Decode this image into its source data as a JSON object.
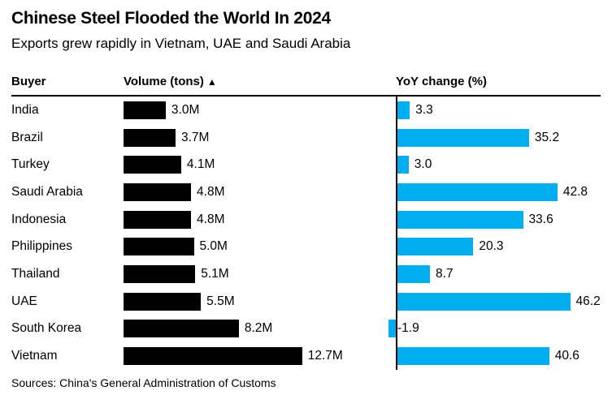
{
  "header": {
    "title": "Chinese Steel Flooded the World In 2024",
    "subtitle": "Exports grew rapidly in Vietnam, UAE and Saudi Arabia"
  },
  "table": {
    "col_buyer": "Buyer",
    "col_volume": "Volume (tons)",
    "sort_indicator": "▲",
    "col_yoy": "YoY change (%)"
  },
  "footer": {
    "source": "Sources: China's General Administration of Customs"
  },
  "colors": {
    "volume_bar": "#000000",
    "yoy_bar": "#00AEEF",
    "rule": "#000000"
  },
  "chart_data": {
    "type": "bar",
    "orientation": "horizontal",
    "title": "Chinese Steel Flooded the World In 2024",
    "subtitle": "Exports grew rapidly in Vietnam, UAE and Saudi Arabia",
    "columns": [
      "Buyer",
      "Volume (tons) ▲",
      "YoY change (%)"
    ],
    "sort": "volume ascending",
    "legend_position": "none",
    "grid": false,
    "categories": [
      "India",
      "Brazil",
      "Turkey",
      "Saudi Arabia",
      "Indonesia",
      "Philippines",
      "Thailand",
      "UAE",
      "South Korea",
      "Vietnam"
    ],
    "series": [
      {
        "name": "Volume (tons)",
        "unit": "millions of tons",
        "color": "#000000",
        "values": [
          3.0,
          3.7,
          4.1,
          4.8,
          4.8,
          5.0,
          5.1,
          5.5,
          8.2,
          12.7
        ]
      },
      {
        "name": "YoY change (%)",
        "unit": "percent",
        "color": "#00AEEF",
        "values": [
          3.3,
          35.2,
          3.0,
          42.8,
          33.6,
          20.3,
          8.7,
          46.2,
          -1.9,
          40.6
        ]
      }
    ],
    "rows": [
      {
        "buyer": "India",
        "volume_m": 3.0,
        "volume_label": "3.0M",
        "yoy": 3.3,
        "yoy_label": "3.3"
      },
      {
        "buyer": "Brazil",
        "volume_m": 3.7,
        "volume_label": "3.7M",
        "yoy": 35.2,
        "yoy_label": "35.2"
      },
      {
        "buyer": "Turkey",
        "volume_m": 4.1,
        "volume_label": "4.1M",
        "yoy": 3.0,
        "yoy_label": "3.0"
      },
      {
        "buyer": "Saudi Arabia",
        "volume_m": 4.8,
        "volume_label": "4.8M",
        "yoy": 42.8,
        "yoy_label": "42.8"
      },
      {
        "buyer": "Indonesia",
        "volume_m": 4.8,
        "volume_label": "4.8M",
        "yoy": 33.6,
        "yoy_label": "33.6"
      },
      {
        "buyer": "Philippines",
        "volume_m": 5.0,
        "volume_label": "5.0M",
        "yoy": 20.3,
        "yoy_label": "20.3"
      },
      {
        "buyer": "Thailand",
        "volume_m": 5.1,
        "volume_label": "5.1M",
        "yoy": 8.7,
        "yoy_label": "8.7"
      },
      {
        "buyer": "UAE",
        "volume_m": 5.5,
        "volume_label": "5.5M",
        "yoy": 46.2,
        "yoy_label": "46.2"
      },
      {
        "buyer": "South Korea",
        "volume_m": 8.2,
        "volume_label": "8.2M",
        "yoy": -1.9,
        "yoy_label": "-1.9"
      },
      {
        "buyer": "Vietnam",
        "volume_m": 12.7,
        "volume_label": "12.7M",
        "yoy": 40.6,
        "yoy_label": "40.6"
      }
    ],
    "volume_axis_range": [
      0,
      12.7
    ],
    "yoy_axis_range": [
      -1.9,
      46.2
    ]
  }
}
